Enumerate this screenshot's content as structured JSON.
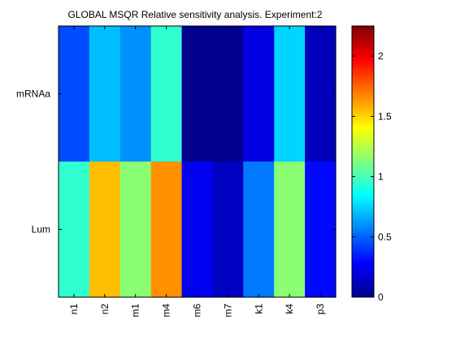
{
  "chart_data": {
    "type": "heatmap",
    "title": "GLOBAL MSQR Relative sensitivity analysis. Experiment:2",
    "xlabel": "",
    "ylabel": "",
    "columns": [
      "n1",
      "n2",
      "m1",
      "m4",
      "m6",
      "m7",
      "k1",
      "k4",
      "p3"
    ],
    "rows": [
      "mRNAa",
      "Lum"
    ],
    "values": [
      [
        0.45,
        0.7,
        0.6,
        0.95,
        0.03,
        0.03,
        0.22,
        0.75,
        0.13
      ],
      [
        0.95,
        1.55,
        1.15,
        1.65,
        0.25,
        0.15,
        0.55,
        1.15,
        0.3
      ]
    ],
    "colormap": "jet",
    "colorbar": {
      "min": 0,
      "max": 2.25,
      "ticks": [
        0,
        0.5,
        1,
        1.5,
        2
      ],
      "tick_labels": [
        "0",
        "0.5",
        "1",
        "1.5",
        "2"
      ]
    },
    "grid": false,
    "legend": "colorbar-right",
    "colors": {
      "background": "#ffffff",
      "axis": "#000000",
      "jet_low": "#00008f",
      "jet_high": "#800000"
    }
  }
}
